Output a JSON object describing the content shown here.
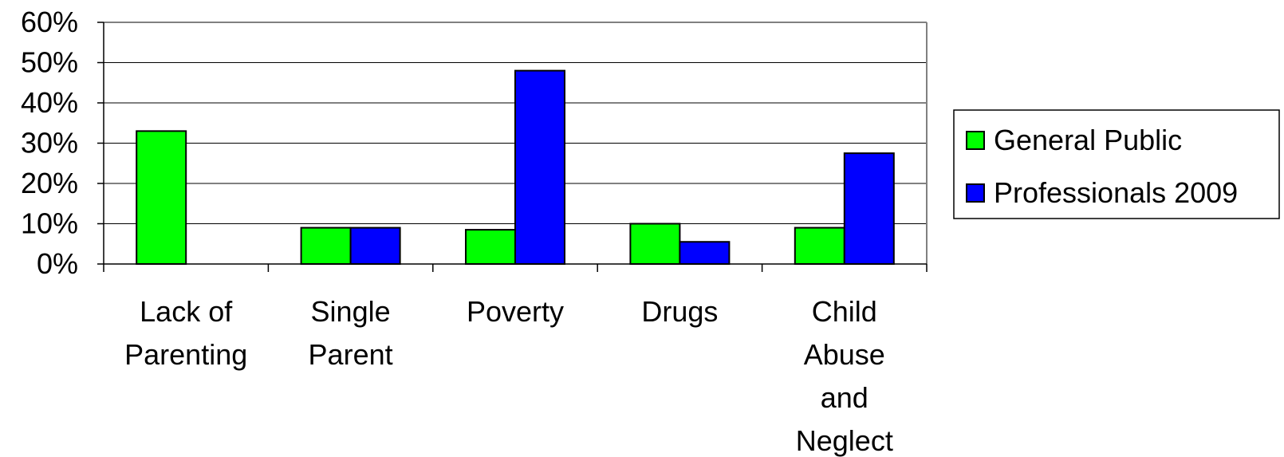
{
  "chart_data": {
    "type": "bar",
    "title": "",
    "xlabel": "",
    "ylabel": "",
    "categories": [
      [
        "Lack of",
        "Parenting"
      ],
      [
        "Single",
        "Parent"
      ],
      [
        "Poverty"
      ],
      [
        "Drugs"
      ],
      [
        "Child",
        "Abuse",
        "and",
        "Neglect"
      ]
    ],
    "series": [
      {
        "name": "General Public",
        "color": "#00ff00",
        "values": [
          33,
          9,
          8.5,
          10,
          9
        ]
      },
      {
        "name": "Professionals 2009",
        "color": "#0000ff",
        "values": [
          0,
          9,
          48,
          5.5,
          27.5
        ]
      }
    ],
    "ylim": [
      0,
      60
    ],
    "yticks": [
      0,
      10,
      20,
      30,
      40,
      50,
      60
    ],
    "ytick_labels": [
      "0%",
      "10%",
      "20%",
      "30%",
      "40%",
      "50%",
      "60%"
    ],
    "grid": true,
    "legend_position": "right"
  }
}
